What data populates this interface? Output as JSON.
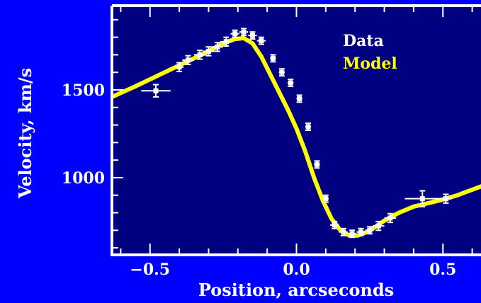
{
  "chart_data": {
    "type": "scatter",
    "xlabel": "Position, arcseconds",
    "ylabel": "Velocity, km/s",
    "xlim": [
      -0.63,
      0.63
    ],
    "ylim": [
      560,
      1980
    ],
    "xticks": [
      {
        "value": -0.5,
        "label": "−0.5"
      },
      {
        "value": 0.0,
        "label": "0.0"
      },
      {
        "value": 0.5,
        "label": "0.5"
      }
    ],
    "yticks": [
      {
        "value": 1000,
        "label": "1000"
      },
      {
        "value": 1500,
        "label": "1500"
      }
    ],
    "legend_position": "top-right",
    "colors": {
      "background": "#0000ff",
      "plot_area": "#000080",
      "frame": "#ffffff",
      "data": "#ffffff",
      "model": "#ffff00"
    },
    "series": [
      {
        "name": "Data",
        "kind": "points",
        "color": "#ffffff",
        "points": [
          {
            "x": -0.48,
            "y": 1495,
            "xerr": 0.05,
            "yerr": 35
          },
          {
            "x": -0.4,
            "y": 1630,
            "xerr": 0.015,
            "yerr": 25
          },
          {
            "x": -0.37,
            "y": 1670,
            "xerr": 0.02,
            "yerr": 25
          },
          {
            "x": -0.33,
            "y": 1700,
            "xerr": 0.02,
            "yerr": 25
          },
          {
            "x": -0.3,
            "y": 1720,
            "xerr": 0.02,
            "yerr": 25
          },
          {
            "x": -0.27,
            "y": 1745,
            "xerr": 0.02,
            "yerr": 25
          },
          {
            "x": -0.24,
            "y": 1775,
            "xerr": 0.02,
            "yerr": 25
          },
          {
            "x": -0.21,
            "y": 1820,
            "xerr": 0.015,
            "yerr": 20
          },
          {
            "x": -0.18,
            "y": 1830,
            "xerr": 0.015,
            "yerr": 20
          },
          {
            "x": -0.15,
            "y": 1810,
            "xerr": 0.015,
            "yerr": 20
          },
          {
            "x": -0.12,
            "y": 1780,
            "xerr": 0.015,
            "yerr": 20
          },
          {
            "x": -0.08,
            "y": 1680,
            "xerr": 0.01,
            "yerr": 20
          },
          {
            "x": -0.05,
            "y": 1600,
            "xerr": 0.01,
            "yerr": 20
          },
          {
            "x": -0.02,
            "y": 1540,
            "xerr": 0.01,
            "yerr": 20
          },
          {
            "x": 0.01,
            "y": 1450,
            "xerr": 0.01,
            "yerr": 20
          },
          {
            "x": 0.04,
            "y": 1290,
            "xerr": 0.01,
            "yerr": 20
          },
          {
            "x": 0.07,
            "y": 1075,
            "xerr": 0.01,
            "yerr": 20
          },
          {
            "x": 0.1,
            "y": 880,
            "xerr": 0.01,
            "yerr": 20
          },
          {
            "x": 0.13,
            "y": 730,
            "xerr": 0.015,
            "yerr": 20
          },
          {
            "x": 0.16,
            "y": 690,
            "xerr": 0.015,
            "yerr": 20
          },
          {
            "x": 0.19,
            "y": 680,
            "xerr": 0.015,
            "yerr": 20
          },
          {
            "x": 0.22,
            "y": 690,
            "xerr": 0.015,
            "yerr": 20
          },
          {
            "x": 0.25,
            "y": 700,
            "xerr": 0.015,
            "yerr": 20
          },
          {
            "x": 0.28,
            "y": 725,
            "xerr": 0.02,
            "yerr": 25
          },
          {
            "x": 0.32,
            "y": 770,
            "xerr": 0.02,
            "yerr": 25
          },
          {
            "x": 0.43,
            "y": 880,
            "xerr": 0.06,
            "yerr": 45
          },
          {
            "x": 0.51,
            "y": 880,
            "xerr": 0.02,
            "yerr": 25
          }
        ]
      },
      {
        "name": "Model",
        "kind": "line",
        "color": "#ffff00",
        "x": [
          -0.63,
          -0.55,
          -0.5,
          -0.45,
          -0.4,
          -0.35,
          -0.3,
          -0.25,
          -0.21,
          -0.18,
          -0.15,
          -0.12,
          -0.09,
          -0.06,
          -0.03,
          0.0,
          0.03,
          0.06,
          0.09,
          0.12,
          0.15,
          0.18,
          0.21,
          0.24,
          0.27,
          0.3,
          0.35,
          0.4,
          0.45,
          0.5,
          0.55,
          0.63
        ],
        "y": [
          1460,
          1520,
          1560,
          1600,
          1640,
          1680,
          1720,
          1765,
          1790,
          1795,
          1765,
          1690,
          1590,
          1490,
          1390,
          1280,
          1150,
          1000,
          870,
          765,
          700,
          670,
          670,
          690,
          720,
          755,
          800,
          835,
          855,
          875,
          900,
          950
        ]
      }
    ]
  }
}
